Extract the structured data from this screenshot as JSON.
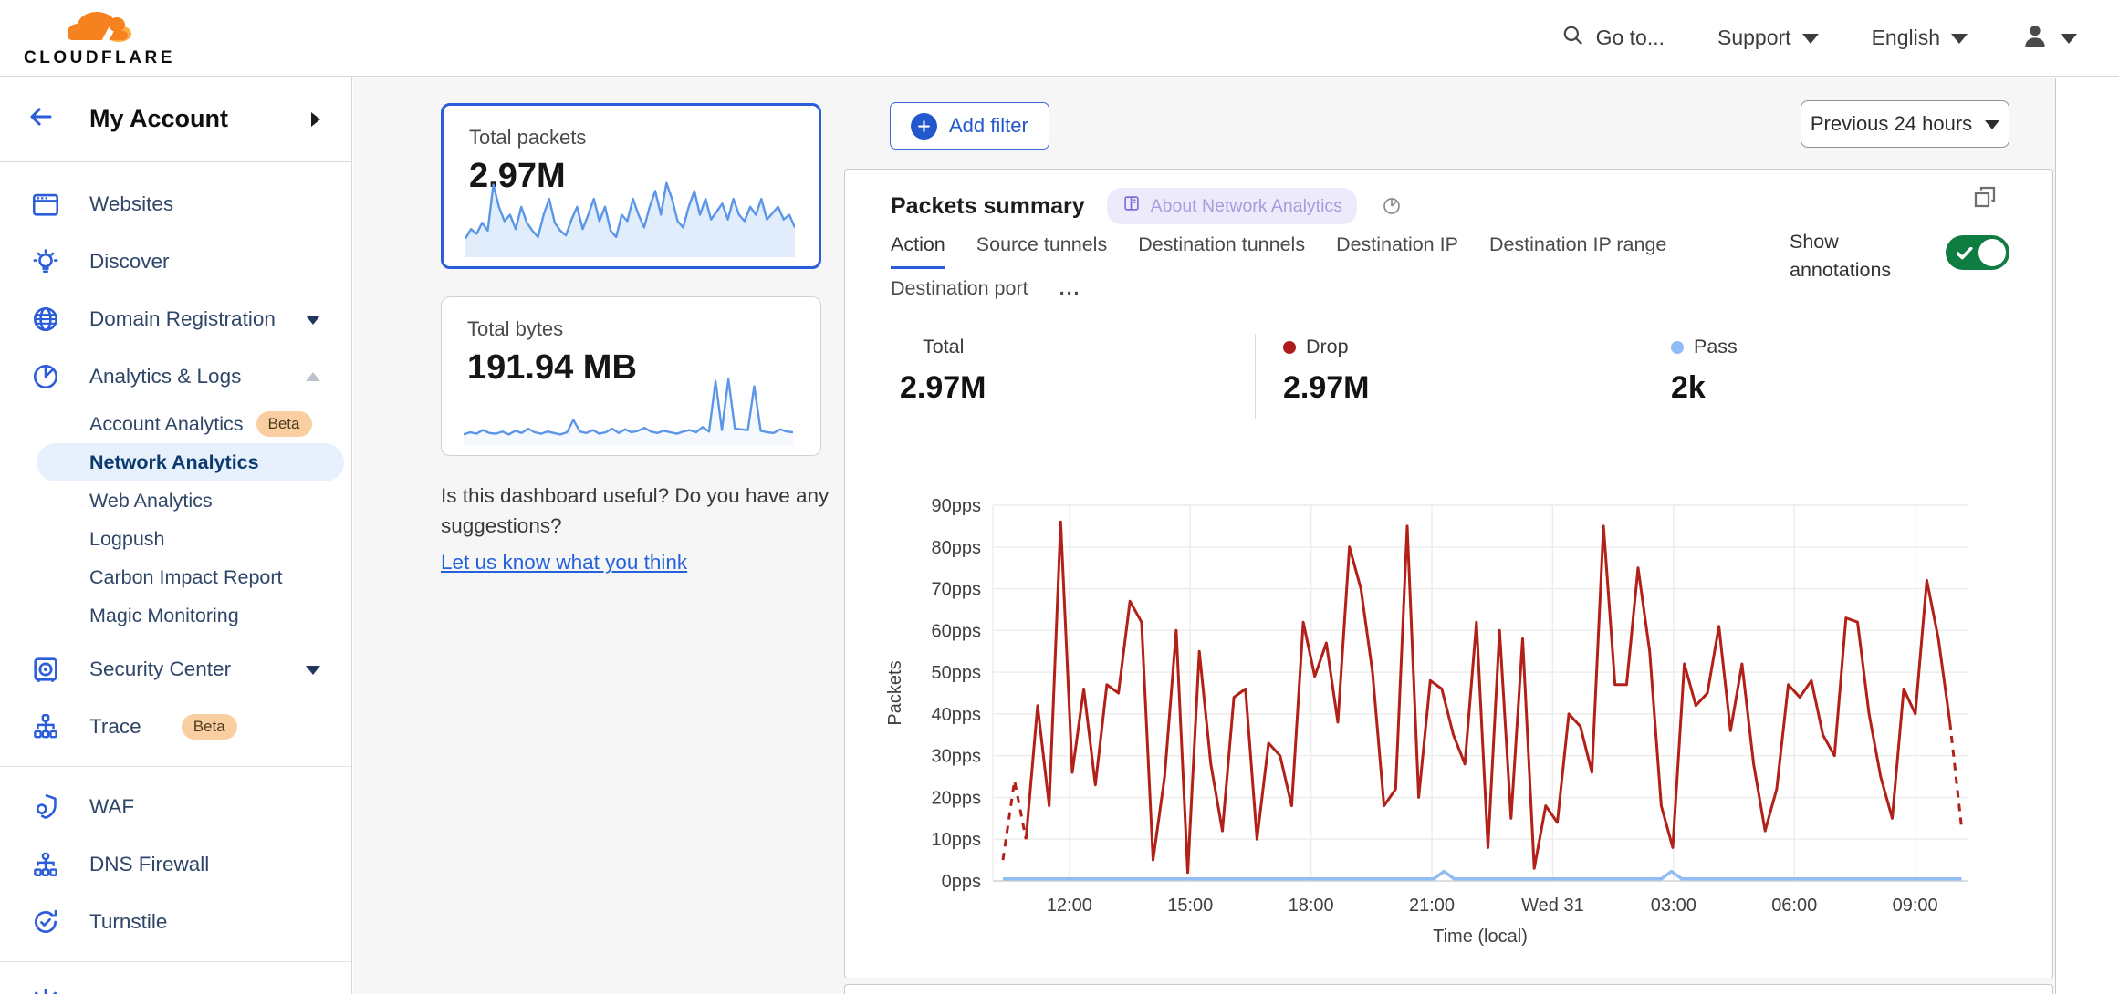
{
  "header": {
    "logo_text": "CLOUDFLARE",
    "goto_label": "Go to...",
    "support_label": "Support",
    "language_label": "English"
  },
  "sidebar": {
    "account_label": "My Account",
    "items_top": [
      {
        "label": "Websites"
      },
      {
        "label": "Discover"
      },
      {
        "label": "Domain Registration"
      },
      {
        "label": "Analytics & Logs"
      }
    ],
    "analytics_sub": [
      {
        "label": "Account Analytics",
        "badge": "Beta"
      },
      {
        "label": "Network Analytics",
        "selected": true
      },
      {
        "label": "Web Analytics"
      },
      {
        "label": "Logpush"
      },
      {
        "label": "Carbon Impact Report"
      },
      {
        "label": "Magic Monitoring"
      }
    ],
    "items_mid": [
      {
        "label": "Security Center"
      },
      {
        "label": "Trace",
        "badge": "Beta"
      }
    ],
    "items_bottom": [
      {
        "label": "WAF"
      },
      {
        "label": "DNS Firewall"
      },
      {
        "label": "Turnstile"
      }
    ]
  },
  "overview_cards": [
    {
      "title": "Total packets",
      "value": "2.97M",
      "selected": true
    },
    {
      "title": "Total bytes",
      "value": "191.94 MB",
      "selected": false
    }
  ],
  "feedback": {
    "question": "Is this dashboard useful? Do you have any suggestions?",
    "link_label": "Let us know what you think"
  },
  "toolbar": {
    "add_filter_label": "Add filter",
    "time_range_label": "Previous 24 hours"
  },
  "panel": {
    "title": "Packets summary",
    "about_badge_label": "About Network Analytics",
    "tabs": [
      "Action",
      "Source tunnels",
      "Destination tunnels",
      "Destination IP",
      "Destination IP range",
      "Destination port"
    ],
    "more_tabs_label": "...",
    "active_tab": "Action",
    "show_annotations_label": "Show annotations",
    "annotations_enabled": true,
    "stats": [
      {
        "label": "Total",
        "value": "2.97M",
        "dot_color": null
      },
      {
        "label": "Drop",
        "value": "2.97M",
        "dot_color": "#b01b1b"
      },
      {
        "label": "Pass",
        "value": "2k",
        "dot_color": "#8fbcf4"
      }
    ]
  },
  "chart_data": {
    "main_chart": {
      "type": "line",
      "title": "Packets summary",
      "xlabel": "Time (local)",
      "ylabel": "Packets",
      "ylim": [
        0,
        90
      ],
      "y_ticks": [
        0,
        10,
        20,
        30,
        40,
        50,
        60,
        70,
        80,
        90
      ],
      "y_tick_suffix": "pps",
      "grid": true,
      "legend_position": "none",
      "x_domain_hours": [
        10.1,
        34.3
      ],
      "x_ticks": [
        {
          "hour": 12,
          "label": "12:00"
        },
        {
          "hour": 15,
          "label": "15:00"
        },
        {
          "hour": 18,
          "label": "18:00"
        },
        {
          "hour": 21,
          "label": "21:00"
        },
        {
          "hour": 24,
          "label": "Wed 31"
        },
        {
          "hour": 27,
          "label": "03:00"
        },
        {
          "hour": 30,
          "label": "06:00"
        },
        {
          "hour": 33,
          "label": "09:00"
        }
      ],
      "series": [
        {
          "name": "Drop",
          "color": "#b22018",
          "x_start": 10.35,
          "x_end": 34.15,
          "dashed_head_points": 2,
          "dashed_tail_points": 1,
          "y_values": [
            5,
            24,
            10,
            42,
            18,
            86,
            26,
            46,
            23,
            47,
            45,
            67,
            62,
            5,
            25,
            60,
            2,
            55,
            28,
            12,
            44,
            46,
            10,
            33,
            30,
            18,
            62,
            49,
            57,
            38,
            80,
            70,
            50,
            18,
            22,
            85,
            20,
            48,
            46,
            35,
            28,
            62,
            8,
            60,
            15,
            58,
            3,
            18,
            14,
            40,
            37,
            26,
            85,
            47,
            47,
            75,
            55,
            18,
            8,
            52,
            42,
            45,
            61,
            36,
            52,
            28,
            12,
            22,
            47,
            44,
            48,
            35,
            30,
            63,
            62,
            40,
            25,
            15,
            46,
            40,
            72,
            58,
            38,
            13
          ]
        },
        {
          "name": "Pass",
          "color": "#90bdf2",
          "points": [
            [
              10.35,
              0.5
            ],
            [
              21.05,
              0.5
            ],
            [
              21.3,
              2.3
            ],
            [
              21.55,
              0.5
            ],
            [
              26.7,
              0.5
            ],
            [
              26.95,
              2.3
            ],
            [
              27.2,
              0.5
            ],
            [
              34.15,
              0.5
            ]
          ]
        }
      ]
    },
    "sparklines": [
      {
        "name": "Total packets trend",
        "color": "#5b96e8",
        "fill": "#bcd6f7",
        "fill_opacity": 0.45,
        "max": 10,
        "values": [
          2,
          3.2,
          2.6,
          4,
          3,
          8.8,
          6,
          4.2,
          5,
          3.2,
          6,
          4,
          3,
          2.2,
          5,
          7,
          4,
          3,
          2.4,
          4.4,
          6,
          3.2,
          5,
          7,
          4.2,
          6,
          3,
          2.2,
          5,
          4.2,
          7,
          5,
          3.4,
          6,
          8,
          5,
          9,
          7,
          4.2,
          3.4,
          6,
          8,
          5,
          7,
          4.4,
          5.4,
          6.4,
          4.4,
          7,
          5,
          4.2,
          6,
          5,
          7,
          4.4,
          5.2,
          6,
          4.4,
          5,
          3.4
        ]
      },
      {
        "name": "Total bytes trend",
        "color": "#5b96e8",
        "fill": "#bcd6f7",
        "fill_opacity": 0.15,
        "max": 9,
        "values": [
          1.2,
          1.5,
          1.3,
          1.8,
          1.4,
          1.3,
          1.6,
          1.2,
          1.7,
          1.4,
          2.0,
          1.5,
          1.3,
          1.6,
          1.4,
          1.2,
          1.5,
          3.2,
          1.6,
          1.4,
          1.8,
          1.3,
          1.5,
          2.0,
          1.4,
          1.9,
          1.5,
          1.7,
          2.1,
          1.6,
          1.4,
          1.7,
          1.5,
          1.3,
          1.6,
          1.8,
          1.5,
          2.2,
          1.6,
          8.5,
          1.8,
          8.8,
          2.0,
          1.9,
          1.8,
          7.8,
          1.7,
          1.5,
          1.4,
          1.9,
          1.6,
          1.5
        ]
      }
    ]
  },
  "colors": {
    "accent_blue": "#2b5cd9",
    "drop_red": "#b22018",
    "pass_blue": "#90bdf2",
    "toggle_green": "#0f7c41",
    "beta_badge_bg": "#f9cfa2",
    "selected_item_bg": "#e7f1fd",
    "brand_orange": "#f6821f"
  }
}
